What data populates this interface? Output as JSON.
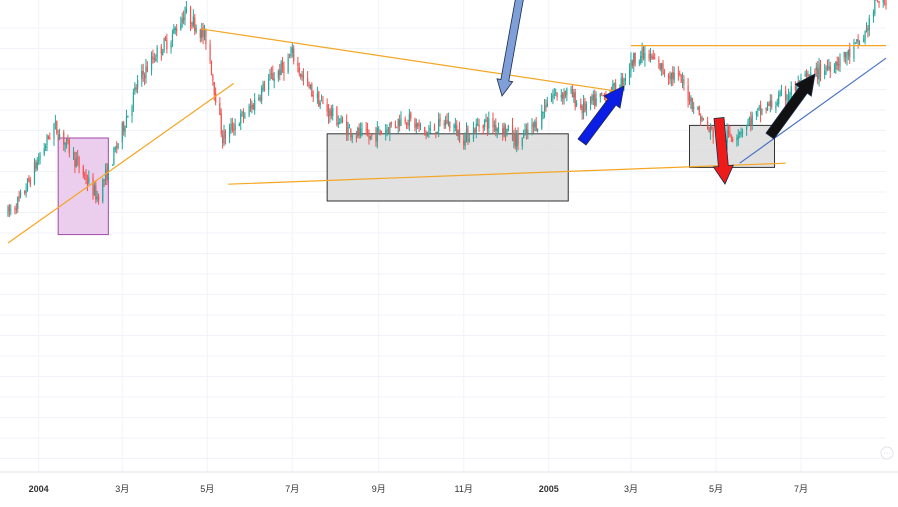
{
  "chart_data": {
    "type": "candlestick",
    "title": "",
    "xlabel": "",
    "ylabel": "",
    "grid": true,
    "legend": "none",
    "x_ticks": [
      {
        "label": "2004",
        "date": "2004-01-01",
        "major": true
      },
      {
        "label": "3月",
        "date": "2004-03-01",
        "major": false
      },
      {
        "label": "5月",
        "date": "2004-05-01",
        "major": false
      },
      {
        "label": "7月",
        "date": "2004-07-01",
        "major": false
      },
      {
        "label": "9月",
        "date": "2004-09-01",
        "major": false
      },
      {
        "label": "11月",
        "date": "2004-11-01",
        "major": false
      },
      {
        "label": "2005",
        "date": "2005-01-01",
        "major": true
      },
      {
        "label": "3月",
        "date": "2005-03-01",
        "major": false
      },
      {
        "label": "5月",
        "date": "2005-05-01",
        "major": false
      },
      {
        "label": "7月",
        "date": "2005-07-01",
        "major": false
      }
    ],
    "x_range": [
      "2003-12-10",
      "2005-08-31"
    ],
    "y_range": [
      0,
      100
    ],
    "price_path": [
      [
        "2003-12-10",
        42
      ],
      [
        "2003-12-20",
        46
      ],
      [
        "2004-01-01",
        55
      ],
      [
        "2004-01-12",
        63
      ],
      [
        "2004-01-22",
        58
      ],
      [
        "2004-02-01",
        52
      ],
      [
        "2004-02-12",
        46
      ],
      [
        "2004-02-22",
        54
      ],
      [
        "2004-03-01",
        62
      ],
      [
        "2004-03-12",
        73
      ],
      [
        "2004-03-25",
        80
      ],
      [
        "2004-04-05",
        84
      ],
      [
        "2004-04-15",
        90
      ],
      [
        "2004-04-25",
        86
      ],
      [
        "2004-05-01",
        83
      ],
      [
        "2004-05-06",
        72
      ],
      [
        "2004-05-12",
        60
      ],
      [
        "2004-05-20",
        63
      ],
      [
        "2004-06-01",
        67
      ],
      [
        "2004-06-12",
        73
      ],
      [
        "2004-06-25",
        77
      ],
      [
        "2004-07-01",
        80
      ],
      [
        "2004-07-10",
        73
      ],
      [
        "2004-07-25",
        67
      ],
      [
        "2004-08-10",
        62
      ],
      [
        "2004-08-25",
        60
      ],
      [
        "2004-09-05",
        62
      ],
      [
        "2004-09-20",
        65
      ],
      [
        "2004-10-05",
        61
      ],
      [
        "2004-10-20",
        64
      ],
      [
        "2004-11-01",
        60
      ],
      [
        "2004-11-15",
        64
      ],
      [
        "2004-12-01",
        62
      ],
      [
        "2004-12-10",
        59
      ],
      [
        "2004-12-25",
        64
      ],
      [
        "2005-01-01",
        70
      ],
      [
        "2005-01-15",
        71
      ],
      [
        "2005-01-25",
        67
      ],
      [
        "2005-02-05",
        69
      ],
      [
        "2005-02-20",
        72
      ],
      [
        "2005-03-05",
        80
      ],
      [
        "2005-03-15",
        79
      ],
      [
        "2005-03-25",
        76
      ],
      [
        "2005-04-05",
        74
      ],
      [
        "2005-04-15",
        68
      ],
      [
        "2005-04-25",
        62
      ],
      [
        "2005-05-05",
        60
      ],
      [
        "2005-05-15",
        61
      ],
      [
        "2005-05-25",
        64
      ],
      [
        "2005-06-05",
        67
      ],
      [
        "2005-06-20",
        70
      ],
      [
        "2005-07-05",
        74
      ],
      [
        "2005-07-20",
        77
      ],
      [
        "2005-08-05",
        80
      ],
      [
        "2005-08-15",
        84
      ],
      [
        "2005-08-25",
        93
      ]
    ],
    "trendlines": [
      {
        "name": "support-uptrend-2004",
        "color": "#f5a623",
        "from": [
          "2003-12-10",
          35
        ],
        "to": [
          "2004-05-20",
          73
        ]
      },
      {
        "name": "resistance-downtrend",
        "color": "#f5a623",
        "from": [
          "2004-04-26",
          86
        ],
        "to": [
          "2005-02-22",
          71
        ]
      },
      {
        "name": "support-flat",
        "color": "#f5a623",
        "from": [
          "2004-05-16",
          49
        ],
        "to": [
          "2005-06-20",
          54
        ]
      },
      {
        "name": "resistance-flat-2005",
        "color": "#f5a623",
        "from": [
          "2005-03-01",
          82
        ],
        "to": [
          "2005-08-31",
          82
        ]
      },
      {
        "name": "support-uptrend-2005",
        "color": "#4a72c6",
        "from": [
          "2005-05-18",
          54
        ],
        "to": [
          "2005-08-31",
          79
        ]
      }
    ],
    "zones": [
      {
        "name": "zone-early-2004",
        "fill": "#e8c6ea",
        "stroke": "#a24aa8",
        "from": [
          "2004-01-15",
          60
        ],
        "to": [
          "2004-02-20",
          37
        ]
      },
      {
        "name": "zone-consolidation-2004",
        "fill": "#dcdcdc",
        "stroke": "#333333",
        "from": [
          "2004-07-26",
          61
        ],
        "to": [
          "2005-01-15",
          45
        ]
      },
      {
        "name": "zone-consolidation-2005",
        "fill": "#dcdcdc",
        "stroke": "#333333",
        "from": [
          "2005-04-12",
          63
        ],
        "to": [
          "2005-06-12",
          53
        ]
      }
    ],
    "arrows": [
      {
        "name": "steel-blue-down-arrow",
        "direction": "down",
        "color": "#7f9fd9"
      },
      {
        "name": "blue-up-arrow",
        "direction": "up",
        "color": "#0a1ee6"
      },
      {
        "name": "red-down-arrow",
        "direction": "down",
        "color": "#ee1b1b"
      },
      {
        "name": "black-up-arrow",
        "direction": "up",
        "color": "#111111"
      }
    ],
    "colors": {
      "up": "#26a69a",
      "down": "#ef5350",
      "grid": "#f0f3fa",
      "axis_text": "#333333"
    }
  }
}
